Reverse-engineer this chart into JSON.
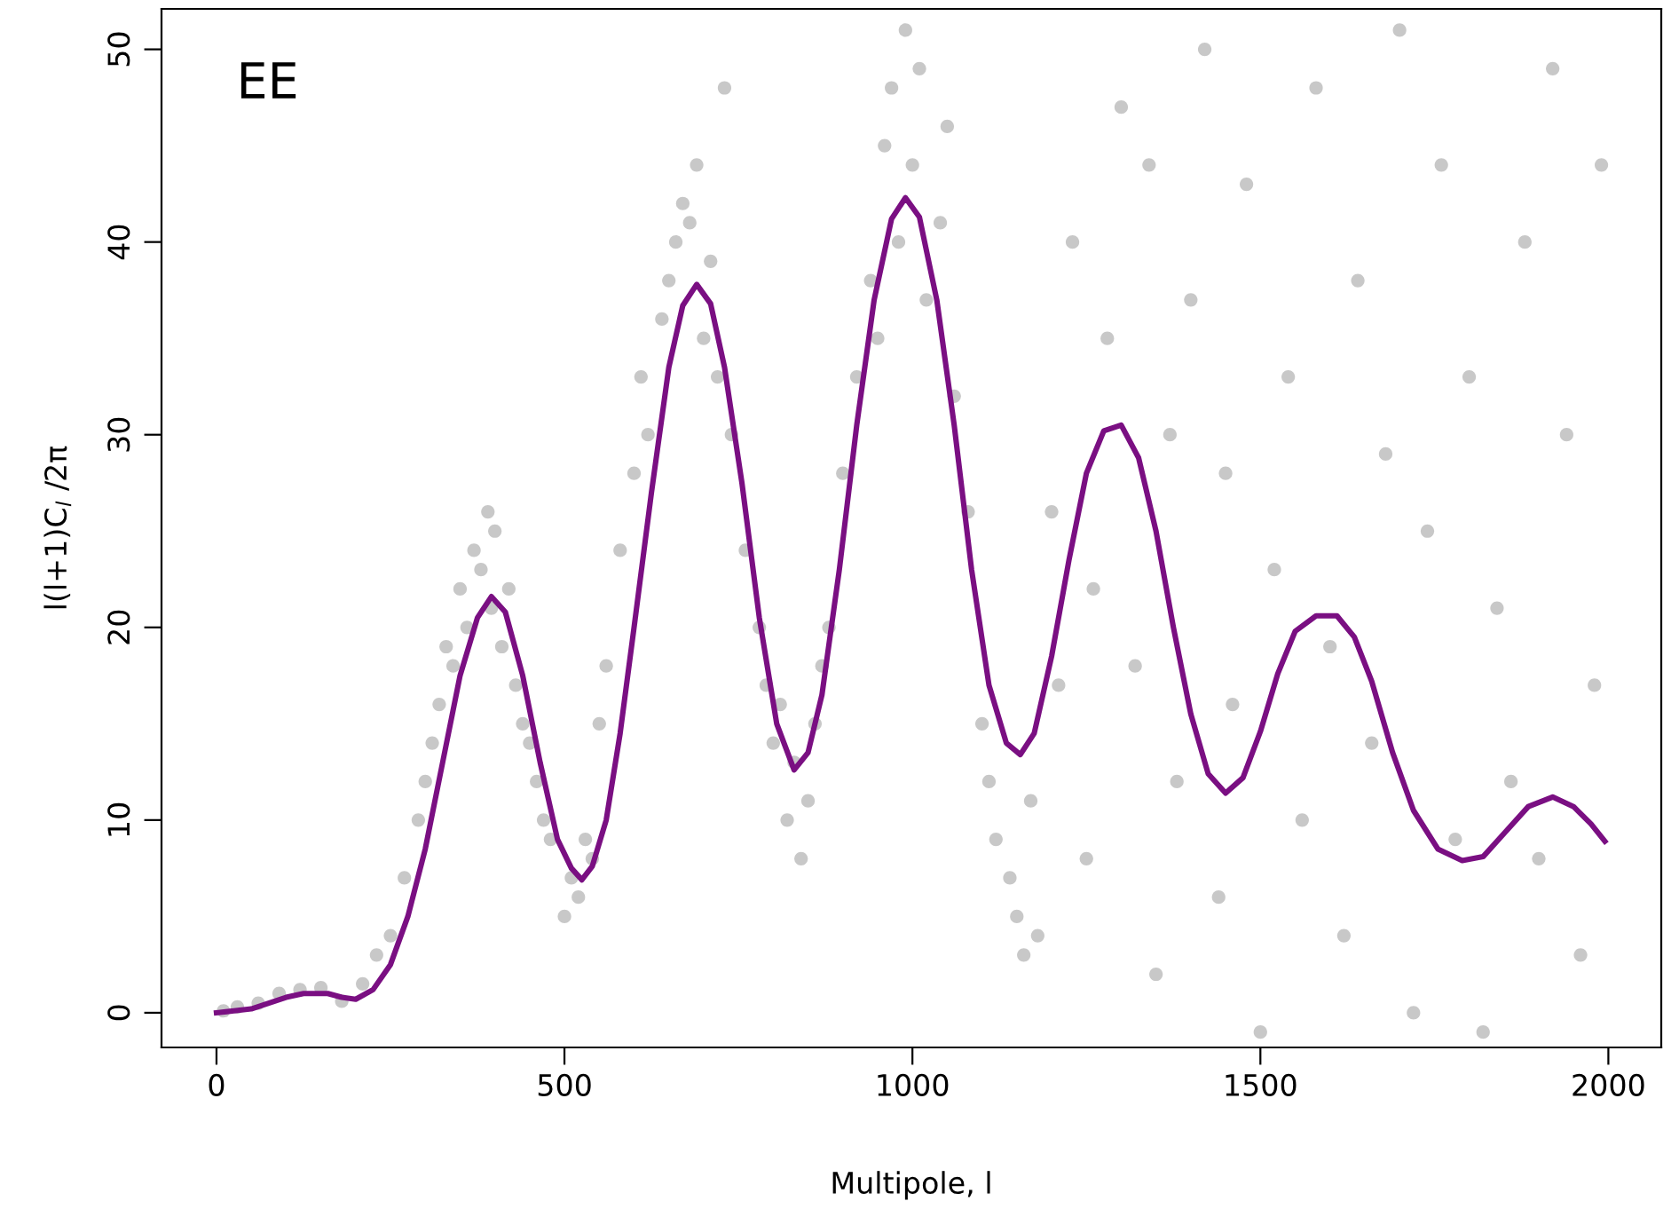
{
  "chart_data": {
    "type": "scatter",
    "xlabel": "Multipole, l",
    "ylabel": "l(l+1)C$_{l}$ /2π",
    "annotations": [
      "EE"
    ],
    "xlim": [
      -79,
      2076
    ],
    "ylim": [
      -1.8,
      52.1
    ],
    "xticks": [
      0,
      500,
      1000,
      1500,
      2000
    ],
    "yticks": [
      0,
      10,
      20,
      30,
      40,
      50
    ],
    "grid": false,
    "marker": "circle",
    "series": [
      {
        "color": "#c8c8c8",
        "x": [
          10,
          30,
          60,
          90,
          120,
          150,
          180,
          210,
          230,
          250,
          270,
          290,
          300,
          310,
          320,
          330,
          340,
          350,
          360,
          370,
          380,
          390,
          395,
          400,
          410,
          420,
          430,
          440,
          450,
          460,
          470,
          480,
          500,
          510,
          520,
          530,
          540,
          550,
          560,
          580,
          600,
          610,
          620,
          640,
          650,
          660,
          670,
          680,
          690,
          700,
          710,
          720,
          730,
          740,
          760,
          780,
          790,
          800,
          810,
          820,
          830,
          840,
          850,
          860,
          870,
          880,
          900,
          920,
          940,
          950,
          960,
          970,
          980,
          990,
          1000,
          1010,
          1020,
          1040,
          1050,
          1060,
          1080,
          1100,
          1110,
          1120,
          1140,
          1150,
          1160,
          1170,
          1180,
          1200,
          1210,
          1230,
          1250,
          1260,
          1280,
          1300,
          1320,
          1340,
          1350,
          1370,
          1380,
          1400,
          1420,
          1440,
          1450,
          1460,
          1480,
          1500,
          1520,
          1540,
          1560,
          1580,
          1600,
          1620,
          1640,
          1660,
          1680,
          1700,
          1720,
          1740,
          1760,
          1780,
          1800,
          1820,
          1840,
          1860,
          1880,
          1900,
          1920,
          1940,
          1960,
          1980,
          1990
        ],
        "values": [
          0.1,
          0.3,
          0.5,
          1.0,
          1.2,
          1.3,
          0.6,
          1.5,
          3,
          4,
          7,
          10,
          12,
          14,
          16,
          19,
          18,
          22,
          20,
          24,
          23,
          26,
          21,
          25,
          19,
          22,
          17,
          15,
          14,
          12,
          10,
          9,
          5,
          7,
          6,
          9,
          8,
          15,
          18,
          24,
          28,
          33,
          30,
          36,
          38,
          40,
          42,
          41,
          44,
          35,
          39,
          33,
          48,
          30,
          24,
          20,
          17,
          14,
          16,
          10,
          13,
          8,
          11,
          15,
          18,
          20,
          28,
          33,
          38,
          35,
          45,
          48,
          40,
          51,
          44,
          49,
          37,
          41,
          46,
          32,
          26,
          15,
          12,
          9,
          7,
          5,
          3,
          11,
          4,
          26,
          17,
          40,
          8,
          22,
          35,
          47,
          18,
          44,
          2,
          30,
          12,
          37,
          50,
          6,
          28,
          16,
          43,
          -1,
          23,
          33,
          10,
          48,
          19,
          4,
          38,
          14,
          29,
          51,
          0,
          25,
          44,
          9,
          33,
          -1,
          21,
          12,
          40,
          8,
          49,
          30,
          3,
          17,
          44
        ]
      },
      {
        "type": "line",
        "color": "#7a0f82",
        "x": [
          0,
          25,
          50,
          75,
          100,
          125,
          140,
          160,
          180,
          200,
          225,
          250,
          275,
          300,
          325,
          350,
          375,
          395,
          415,
          440,
          465,
          490,
          510,
          525,
          540,
          560,
          580,
          600,
          625,
          650,
          670,
          690,
          710,
          730,
          755,
          780,
          805,
          830,
          850,
          870,
          895,
          920,
          945,
          970,
          990,
          1010,
          1035,
          1060,
          1085,
          1110,
          1135,
          1155,
          1175,
          1200,
          1225,
          1250,
          1275,
          1300,
          1325,
          1350,
          1375,
          1400,
          1425,
          1450,
          1475,
          1500,
          1525,
          1550,
          1580,
          1610,
          1635,
          1660,
          1690,
          1720,
          1755,
          1790,
          1820,
          1850,
          1885,
          1920,
          1950,
          1975,
          1995
        ],
        "values": [
          0,
          0.1,
          0.2,
          0.5,
          0.8,
          1.0,
          1.0,
          1.0,
          0.8,
          0.7,
          1.2,
          2.5,
          5,
          8.5,
          13,
          17.5,
          20.5,
          21.6,
          20.8,
          17.5,
          13,
          9,
          7.5,
          6.9,
          7.6,
          10,
          14.5,
          20,
          27,
          33.5,
          36.7,
          37.8,
          36.8,
          33.5,
          27.5,
          20.5,
          15,
          12.6,
          13.5,
          16.5,
          23,
          30.5,
          37,
          41.2,
          42.3,
          41.3,
          37,
          30.5,
          23,
          17,
          14,
          13.4,
          14.5,
          18.5,
          23.5,
          28,
          30.2,
          30.5,
          28.8,
          25,
          20,
          15.5,
          12.4,
          11.4,
          12.2,
          14.6,
          17.6,
          19.8,
          20.6,
          20.6,
          19.5,
          17.2,
          13.5,
          10.5,
          8.5,
          7.9,
          8.1,
          9.3,
          10.7,
          11.2,
          10.7,
          9.8,
          8.9
        ],
        "marker": "none",
        "line_style": "solid"
      }
    ]
  }
}
